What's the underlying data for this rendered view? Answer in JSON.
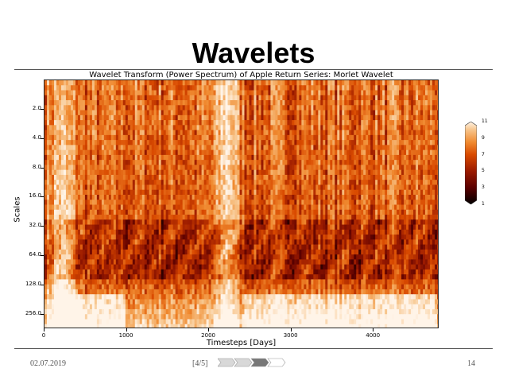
{
  "slide": {
    "title": "Wavelets",
    "footer_date": "02.07.2019",
    "footer_page": "[4/5]",
    "slide_number": "14",
    "progress": {
      "sections": 4,
      "current": 3
    }
  },
  "chart_data": {
    "type": "heatmap",
    "title": "Wavelet Transform (Power Spectrum) of Apple Return Series: Morlet Wavelet",
    "xlabel": "Timesteps [Days]",
    "ylabel": "Scales",
    "xlim": [
      0,
      4800
    ],
    "x_ticks": [
      "0",
      "1000",
      "2000",
      "3000",
      "4000"
    ],
    "y_scale": "log2",
    "ylim": [
      1,
      360
    ],
    "y_ticks": [
      "2.0",
      "4.0",
      "8.0",
      "16.0",
      "32.0",
      "64.0",
      "128.0",
      "256.0"
    ],
    "colormap": "gist_heat_r",
    "colorbar_ticks": [
      "1",
      "3",
      "5",
      "7",
      "9",
      "11"
    ],
    "colorbar_range": [
      1,
      11
    ],
    "colors": [
      "#000000",
      "#5a0000",
      "#9a1a00",
      "#d94a00",
      "#f08a30",
      "#f7c48a",
      "#fff4e8"
    ]
  }
}
